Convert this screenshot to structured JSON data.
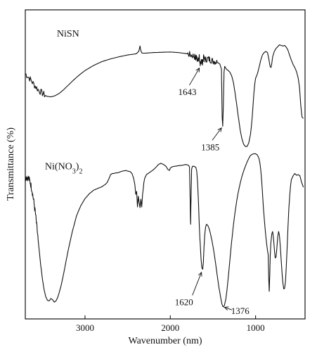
{
  "chart_data": {
    "type": "line",
    "xlabel": "Wavenumber (nm)",
    "ylabel": "Transmittance (%)",
    "xlim": [
      3700,
      420
    ],
    "ylim": [
      0,
      100
    ],
    "x_ticks": [
      {
        "value": 3000,
        "label": "3000"
      },
      {
        "value": 2000,
        "label": "2000"
      },
      {
        "value": 1000,
        "label": "1000"
      }
    ],
    "series": [
      {
        "name": "NiSN",
        "label_at": [
          3330,
          93.0
        ],
        "points": [
          [
            3700,
            80.6
          ],
          [
            3650,
            79.0
          ],
          [
            3600,
            77.0
          ],
          [
            3550,
            75.2
          ],
          [
            3500,
            74.0
          ],
          [
            3450,
            73.0
          ],
          [
            3400,
            72.8
          ],
          [
            3350,
            73.2
          ],
          [
            3300,
            74.0
          ],
          [
            3250,
            75.2
          ],
          [
            3200,
            76.6
          ],
          [
            3150,
            78.0
          ],
          [
            3100,
            79.3
          ],
          [
            3050,
            80.5
          ],
          [
            3000,
            81.6
          ],
          [
            2900,
            83.3
          ],
          [
            2800,
            84.6
          ],
          [
            2700,
            85.5
          ],
          [
            2600,
            86.2
          ],
          [
            2500,
            86.8
          ],
          [
            2400,
            87.2
          ],
          [
            2370,
            88.0
          ],
          [
            2355,
            89.8
          ],
          [
            2345,
            88.2
          ],
          [
            2330,
            87.4
          ],
          [
            2300,
            87.4
          ],
          [
            2200,
            87.6
          ],
          [
            2100,
            87.7
          ],
          [
            2000,
            87.8
          ],
          [
            1900,
            87.6
          ],
          [
            1800,
            87.2
          ],
          [
            1760,
            86.8
          ],
          [
            1720,
            86.4
          ],
          [
            1700,
            85.6
          ],
          [
            1690,
            86.6
          ],
          [
            1675,
            84.6
          ],
          [
            1660,
            86.2
          ],
          [
            1650,
            84.0
          ],
          [
            1643,
            83.2
          ],
          [
            1635,
            85.6
          ],
          [
            1625,
            84.2
          ],
          [
            1610,
            85.8
          ],
          [
            1590,
            85.2
          ],
          [
            1560,
            85.6
          ],
          [
            1530,
            85.2
          ],
          [
            1500,
            84.8
          ],
          [
            1470,
            84.6
          ],
          [
            1440,
            84.2
          ],
          [
            1420,
            83.8
          ],
          [
            1400,
            82.0
          ],
          [
            1392,
            66.0
          ],
          [
            1385,
            63.0
          ],
          [
            1378,
            70.0
          ],
          [
            1370,
            81.0
          ],
          [
            1362,
            83.0
          ],
          [
            1340,
            82.0
          ],
          [
            1320,
            81.6
          ],
          [
            1300,
            81.0
          ],
          [
            1280,
            79.8
          ],
          [
            1260,
            77.6
          ],
          [
            1240,
            74.0
          ],
          [
            1220,
            70.0
          ],
          [
            1200,
            65.6
          ],
          [
            1180,
            61.6
          ],
          [
            1160,
            58.8
          ],
          [
            1140,
            57.0
          ],
          [
            1120,
            56.2
          ],
          [
            1100,
            56.2
          ],
          [
            1080,
            57.4
          ],
          [
            1060,
            60.2
          ],
          [
            1050,
            62.8
          ],
          [
            1040,
            66.0
          ],
          [
            1030,
            70.0
          ],
          [
            1020,
            74.0
          ],
          [
            1010,
            77.0
          ],
          [
            1000,
            79.0
          ],
          [
            980,
            80.4
          ],
          [
            960,
            82.6
          ],
          [
            940,
            85.0
          ],
          [
            920,
            86.8
          ],
          [
            900,
            87.6
          ],
          [
            880,
            88.0
          ],
          [
            860,
            87.6
          ],
          [
            845,
            85.6
          ],
          [
            830,
            83.0
          ],
          [
            820,
            82.6
          ],
          [
            810,
            84.0
          ],
          [
            800,
            86.2
          ],
          [
            780,
            88.0
          ],
          [
            760,
            89.0
          ],
          [
            740,
            89.6
          ],
          [
            720,
            90.2
          ],
          [
            700,
            90.0
          ],
          [
            680,
            89.8
          ],
          [
            660,
            90.0
          ],
          [
            640,
            89.4
          ],
          [
            620,
            88.4
          ],
          [
            600,
            86.6
          ],
          [
            580,
            85.0
          ],
          [
            560,
            83.6
          ],
          [
            540,
            82.6
          ],
          [
            520,
            81.2
          ],
          [
            500,
            79.0
          ],
          [
            485,
            76.0
          ],
          [
            470,
            70.0
          ],
          [
            455,
            66.0
          ],
          [
            440,
            65.6
          ]
        ]
      },
      {
        "name": "Ni(NO3)2",
        "label_at": [
          3700,
          45.8
        ],
        "points": [
          [
            3700,
            45.8
          ],
          [
            3680,
            46.0
          ],
          [
            3660,
            45.6
          ],
          [
            3640,
            44.0
          ],
          [
            3620,
            41.4
          ],
          [
            3600,
            37.8
          ],
          [
            3580,
            33.4
          ],
          [
            3560,
            28.0
          ],
          [
            3540,
            22.4
          ],
          [
            3520,
            16.8
          ],
          [
            3500,
            12.0
          ],
          [
            3480,
            8.4
          ],
          [
            3460,
            6.0
          ],
          [
            3440,
            4.8
          ],
          [
            3420,
            4.6
          ],
          [
            3400,
            5.4
          ],
          [
            3380,
            5.0
          ],
          [
            3360,
            4.2
          ],
          [
            3340,
            4.6
          ],
          [
            3320,
            5.8
          ],
          [
            3300,
            7.6
          ],
          [
            3280,
            9.8
          ],
          [
            3260,
            12.4
          ],
          [
            3240,
            15.2
          ],
          [
            3220,
            18.2
          ],
          [
            3200,
            21.2
          ],
          [
            3150,
            27.6
          ],
          [
            3100,
            33.0
          ],
          [
            3050,
            36.4
          ],
          [
            3000,
            38.8
          ],
          [
            2950,
            40.4
          ],
          [
            2900,
            41.6
          ],
          [
            2850,
            42.2
          ],
          [
            2800,
            42.8
          ],
          [
            2760,
            43.6
          ],
          [
            2740,
            44.2
          ],
          [
            2720,
            45.4
          ],
          [
            2700,
            46.8
          ],
          [
            2680,
            47.2
          ],
          [
            2660,
            47.2
          ],
          [
            2640,
            47.4
          ],
          [
            2620,
            47.4
          ],
          [
            2600,
            47.6
          ],
          [
            2580,
            47.8
          ],
          [
            2560,
            48.0
          ],
          [
            2520,
            48.2
          ],
          [
            2500,
            48.0
          ],
          [
            2470,
            47.8
          ],
          [
            2450,
            47.2
          ],
          [
            2430,
            45.6
          ],
          [
            2415,
            43.4
          ],
          [
            2405,
            40.2
          ],
          [
            2395,
            41.2
          ],
          [
            2385,
            36.0
          ],
          [
            2375,
            39.6
          ],
          [
            2365,
            37.4
          ],
          [
            2355,
            35.8
          ],
          [
            2345,
            38.6
          ],
          [
            2335,
            36.0
          ],
          [
            2325,
            40.0
          ],
          [
            2310,
            44.2
          ],
          [
            2300,
            45.6
          ],
          [
            2280,
            46.8
          ],
          [
            2260,
            47.2
          ],
          [
            2230,
            47.8
          ],
          [
            2200,
            48.4
          ],
          [
            2170,
            49.2
          ],
          [
            2140,
            50.2
          ],
          [
            2110,
            50.6
          ],
          [
            2080,
            50.2
          ],
          [
            2050,
            49.6
          ],
          [
            2030,
            48.6
          ],
          [
            2010,
            48.2
          ],
          [
            2000,
            49.0
          ],
          [
            1980,
            49.4
          ],
          [
            1950,
            49.6
          ],
          [
            1900,
            49.8
          ],
          [
            1850,
            50.0
          ],
          [
            1820,
            50.2
          ],
          [
            1790,
            50.0
          ],
          [
            1775,
            49.4
          ],
          [
            1768,
            40.0
          ],
          [
            1762,
            30.2
          ],
          [
            1756,
            40.0
          ],
          [
            1750,
            48.6
          ],
          [
            1740,
            49.6
          ],
          [
            1720,
            49.6
          ],
          [
            1700,
            49.2
          ],
          [
            1690,
            48.0
          ],
          [
            1680,
            44.2
          ],
          [
            1670,
            38.0
          ],
          [
            1660,
            30.0
          ],
          [
            1650,
            24.0
          ],
          [
            1640,
            18.8
          ],
          [
            1630,
            15.6
          ],
          [
            1620,
            15.2
          ],
          [
            1612,
            17.6
          ],
          [
            1605,
            22.4
          ],
          [
            1595,
            27.0
          ],
          [
            1585,
            29.4
          ],
          [
            1575,
            30.2
          ],
          [
            1560,
            29.8
          ],
          [
            1545,
            28.8
          ],
          [
            1530,
            27.2
          ],
          [
            1510,
            24.6
          ],
          [
            1490,
            21.2
          ],
          [
            1470,
            17.4
          ],
          [
            1450,
            13.2
          ],
          [
            1430,
            9.2
          ],
          [
            1410,
            5.8
          ],
          [
            1395,
            3.6
          ],
          [
            1385,
            2.8
          ],
          [
            1376,
            2.6
          ],
          [
            1365,
            3.2
          ],
          [
            1350,
            5.0
          ],
          [
            1335,
            8.4
          ],
          [
            1320,
            12.6
          ],
          [
            1300,
            18.6
          ],
          [
            1280,
            24.6
          ],
          [
            1260,
            30.0
          ],
          [
            1240,
            34.4
          ],
          [
            1220,
            38.2
          ],
          [
            1200,
            41.4
          ],
          [
            1180,
            44.0
          ],
          [
            1160,
            46.2
          ],
          [
            1140,
            48.0
          ],
          [
            1120,
            49.6
          ],
          [
            1100,
            51.0
          ],
          [
            1080,
            52.2
          ],
          [
            1060,
            53.2
          ],
          [
            1040,
            53.6
          ],
          [
            1020,
            53.8
          ],
          [
            1000,
            53.8
          ],
          [
            980,
            53.4
          ],
          [
            960,
            52.2
          ],
          [
            950,
            50.8
          ],
          [
            940,
            48.6
          ],
          [
            930,
            45.4
          ],
          [
            920,
            41.2
          ],
          [
            910,
            36.6
          ],
          [
            900,
            32.6
          ],
          [
            890,
            29.2
          ],
          [
            880,
            26.2
          ],
          [
            870,
            23.6
          ],
          [
            860,
            21.4
          ],
          [
            852,
            20.0
          ],
          [
            846,
            12.0
          ],
          [
            840,
            7.8
          ],
          [
            834,
            13.0
          ],
          [
            828,
            20.0
          ],
          [
            820,
            24.4
          ],
          [
            810,
            27.0
          ],
          [
            800,
            27.8
          ],
          [
            790,
            25.6
          ],
          [
            780,
            22.0
          ],
          [
            770,
            19.0
          ],
          [
            760,
            19.2
          ],
          [
            750,
            22.6
          ],
          [
            740,
            26.2
          ],
          [
            730,
            27.8
          ],
          [
            720,
            26.4
          ],
          [
            710,
            22.8
          ],
          [
            700,
            18.4
          ],
          [
            690,
            14.2
          ],
          [
            680,
            10.6
          ],
          [
            670,
            8.6
          ],
          [
            660,
            8.8
          ],
          [
            650,
            11.0
          ],
          [
            640,
            16.0
          ],
          [
            630,
            22.4
          ],
          [
            620,
            29.2
          ],
          [
            610,
            35.2
          ],
          [
            600,
            39.8
          ],
          [
            590,
            43.2
          ],
          [
            580,
            45.2
          ],
          [
            560,
            46.4
          ],
          [
            540,
            47.2
          ],
          [
            520,
            46.6
          ],
          [
            500,
            46.8
          ],
          [
            480,
            46.4
          ],
          [
            460,
            44.2
          ],
          [
            440,
            42.6
          ]
        ]
      }
    ],
    "annotations": [
      {
        "text": "1643",
        "peak": [
          1643,
          83.2
        ],
        "text_at": [
          1800,
          73.4
        ]
      },
      {
        "text": "1385",
        "peak": [
          1385,
          63.0
        ],
        "text_at": [
          1530,
          55.0
        ]
      },
      {
        "text": "1620",
        "peak": [
          1620,
          15.2
        ],
        "text_at": [
          1840,
          3.2
        ]
      },
      {
        "text": "1376",
        "peak": [
          1376,
          2.6
        ],
        "text_at": [
          1180,
          0.2
        ]
      }
    ],
    "grid": false,
    "legend": "none"
  }
}
